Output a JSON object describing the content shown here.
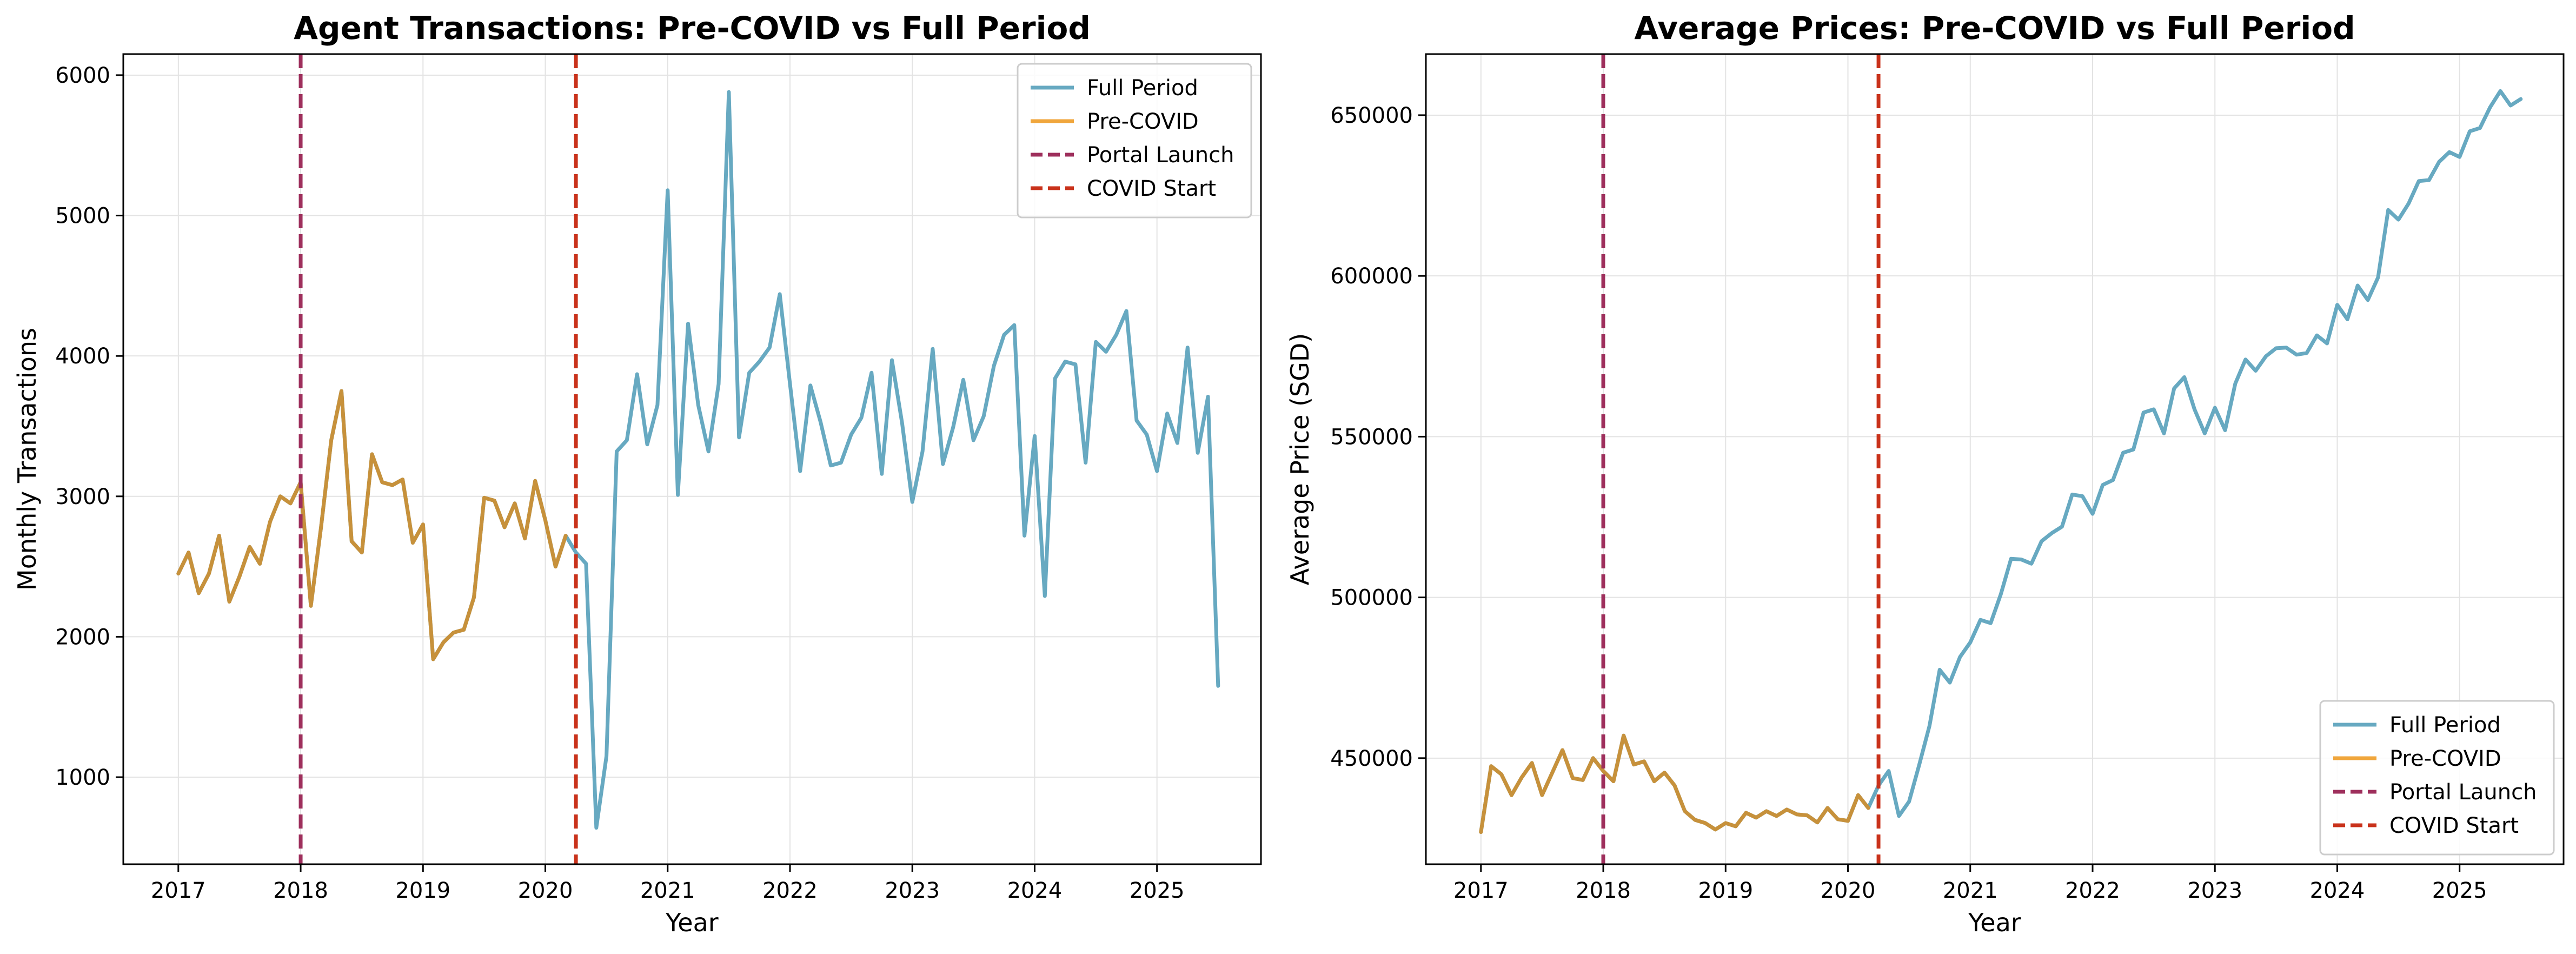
{
  "colors": {
    "full_period": "#67a9c1",
    "pre_covid": "#c7913b",
    "pre_covid_legend": "#f0a63c",
    "portal_launch": "#9e2f5c",
    "covid_start": "#c9321b",
    "grid": "#e3e3e3"
  },
  "chart_data": [
    {
      "type": "line",
      "title": "Agent Transactions: Pre-COVID vs Full Period",
      "xlabel": "Year",
      "ylabel": "Monthly Transactions",
      "xlim": [
        2016.55,
        2025.85
      ],
      "ylim": [
        380,
        6150
      ],
      "xticks": [
        2017,
        2018,
        2019,
        2020,
        2021,
        2022,
        2023,
        2024,
        2025
      ],
      "yticks": [
        1000,
        2000,
        3000,
        4000,
        5000,
        6000
      ],
      "grid": true,
      "legend_position": "top-right",
      "legend": [
        "Full Period",
        "Pre-COVID",
        "Portal Launch",
        "COVID Start"
      ],
      "vlines": [
        {
          "label": "Portal Launch",
          "x": 2018.0
        },
        {
          "label": "COVID Start",
          "x": 2020.25
        }
      ],
      "series": [
        {
          "name": "Full Period",
          "start": 2017.0,
          "step_months": 1,
          "values": [
            2450,
            2600,
            2310,
            2450,
            2720,
            2250,
            2430,
            2640,
            2520,
            2820,
            3000,
            2950,
            3100,
            2220,
            2780,
            3400,
            3750,
            2680,
            2600,
            3300,
            3100,
            3080,
            3120,
            2670,
            2800,
            1840,
            1960,
            2030,
            2050,
            2280,
            2990,
            2970,
            2780,
            2950,
            2700,
            3110,
            2830,
            2500,
            2720,
            2600,
            2520,
            640,
            1150,
            3320,
            3400,
            3870,
            3370,
            3650,
            5180,
            3010,
            4230,
            3650,
            3320,
            3800,
            5880,
            3420,
            3880,
            3960,
            4060,
            4440,
            3800,
            3180,
            3790,
            3530,
            3220,
            3240,
            3440,
            3560,
            3880,
            3160,
            3970,
            3520,
            2960,
            3320,
            4050,
            3230,
            3490,
            3830,
            3400,
            3570,
            3930,
            4150,
            4220,
            2720,
            3430,
            2290,
            3840,
            3960,
            3940,
            3240,
            4100,
            4030,
            4150,
            4320,
            3540,
            3440,
            3180,
            3590,
            3380,
            4060,
            3310,
            3710,
            1650
          ]
        },
        {
          "name": "Pre-COVID",
          "start": 2017.0,
          "step_months": 1,
          "values": [
            2450,
            2600,
            2310,
            2450,
            2720,
            2250,
            2430,
            2640,
            2520,
            2820,
            3000,
            2950,
            3100,
            2220,
            2780,
            3400,
            3750,
            2680,
            2600,
            3300,
            3100,
            3080,
            3120,
            2670,
            2800,
            1840,
            1960,
            2030,
            2050,
            2280,
            2990,
            2970,
            2780,
            2950,
            2700,
            3110,
            2830,
            2500,
            2720
          ]
        }
      ]
    },
    {
      "type": "line",
      "title": "Average Prices: Pre-COVID vs Full Period",
      "xlabel": "Year",
      "ylabel": "Average Price (SGD)",
      "xlim": [
        2016.55,
        2025.85
      ],
      "ylim": [
        417000,
        669000
      ],
      "xticks": [
        2017,
        2018,
        2019,
        2020,
        2021,
        2022,
        2023,
        2024,
        2025
      ],
      "yticks": [
        450000,
        500000,
        550000,
        600000,
        650000
      ],
      "grid": true,
      "legend_position": "bottom-right",
      "legend": [
        "Full Period",
        "Pre-COVID",
        "Portal Launch",
        "COVID Start"
      ],
      "vlines": [
        {
          "label": "Portal Launch",
          "x": 2018.0
        },
        {
          "label": "COVID Start",
          "x": 2020.25
        }
      ],
      "series": [
        {
          "name": "Full Period",
          "start": 2017.0,
          "step_months": 1,
          "values": [
            427000,
            447500,
            445000,
            438500,
            444000,
            448500,
            438500,
            445500,
            452500,
            443800,
            443200,
            450000,
            446000,
            442800,
            457000,
            448000,
            449000,
            442800,
            445500,
            441500,
            433500,
            430800,
            429800,
            427800,
            429800,
            428800,
            433000,
            431500,
            433500,
            432000,
            434000,
            432500,
            432200,
            430000,
            434500,
            431000,
            430500,
            438500,
            434500,
            441500,
            446000,
            432000,
            436500,
            448000,
            460000,
            477500,
            473500,
            481500,
            486000,
            493000,
            492000,
            501000,
            512000,
            511800,
            510500,
            517500,
            520000,
            522000,
            532000,
            531500,
            526000,
            535000,
            536500,
            545000,
            546000,
            557500,
            558500,
            551000,
            565000,
            568500,
            558500,
            551000,
            559000,
            552000,
            566500,
            574000,
            570500,
            575000,
            577500,
            577700,
            575500,
            576000,
            581500,
            579000,
            591000,
            586500,
            597000,
            592500,
            599500,
            620500,
            617500,
            622500,
            629500,
            629800,
            635500,
            638500,
            637000,
            645000,
            646000,
            652500,
            657500,
            653000,
            655000
          ]
        },
        {
          "name": "Pre-COVID",
          "start": 2017.0,
          "step_months": 1,
          "values": [
            427000,
            447500,
            445000,
            438500,
            444000,
            448500,
            438500,
            445500,
            452500,
            443800,
            443200,
            450000,
            446000,
            442800,
            457000,
            448000,
            449000,
            442800,
            445500,
            441500,
            433500,
            430800,
            429800,
            427800,
            429800,
            428800,
            433000,
            431500,
            433500,
            432000,
            434000,
            432500,
            432200,
            430000,
            434500,
            431000,
            430500,
            438500,
            434500
          ]
        }
      ]
    }
  ]
}
